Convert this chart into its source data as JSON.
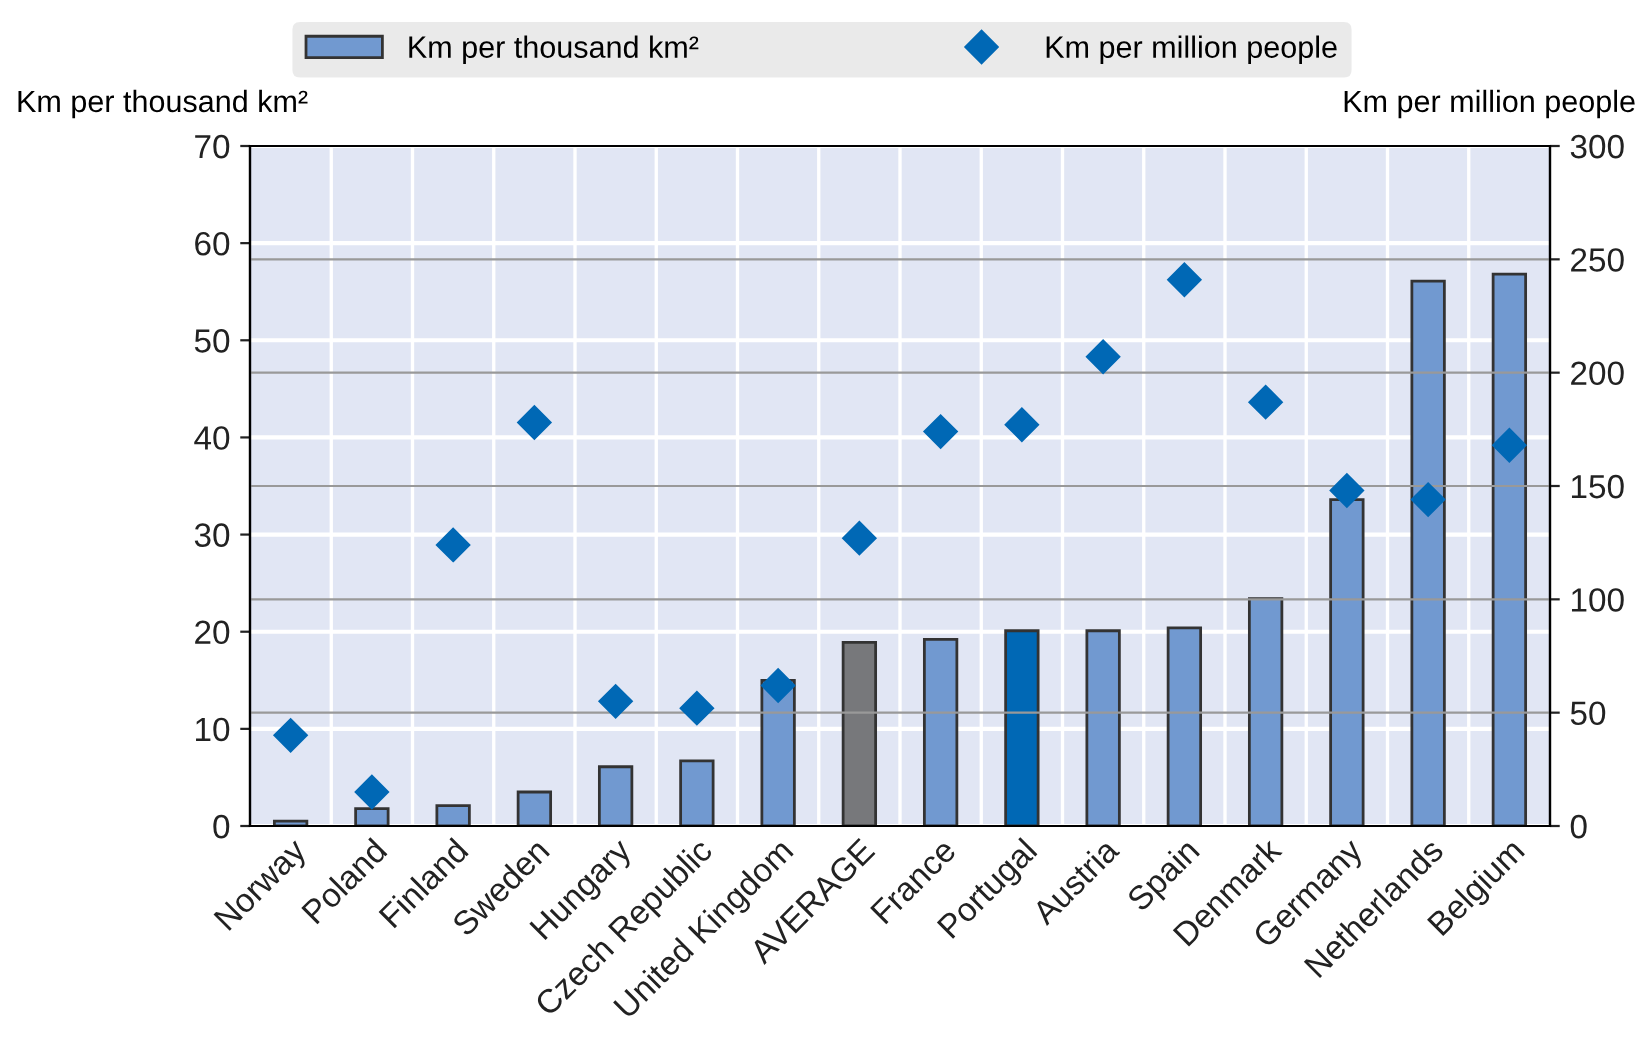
{
  "chart_data": {
    "type": "bar",
    "categories": [
      "Norway",
      "Poland",
      "Finland",
      "Sweden",
      "Hungary",
      "Czech Republic",
      "United Kingdom",
      "AVERAGE",
      "France",
      "Portugal",
      "Austria",
      "Spain",
      "Denmark",
      "Germany",
      "Netherlands",
      "Belgium"
    ],
    "ylabel": "Km per thousand km²",
    "y2label": "Km per million people",
    "series": [
      {
        "name": "Km per thousand km²",
        "color": "#7199d0",
        "colors": [
          "#7199d0",
          "#7199d0",
          "#7199d0",
          "#7199d0",
          "#7199d0",
          "#7199d0",
          "#7199d0",
          "#77787b",
          "#7199d0",
          "#0068b5",
          "#7199d0",
          "#7199d0",
          "#7199d0",
          "#7199d0",
          "#7199d0",
          "#7199d0"
        ],
        "values": [
          0.5,
          1.8,
          2.1,
          3.5,
          6.1,
          6.7,
          15,
          18.9,
          19.2,
          20.1,
          20.1,
          20.4,
          23.4,
          33.6,
          56.1,
          56.8
        ]
      },
      {
        "name": "Km per million people",
        "type": "scatter",
        "axis": "y2",
        "marker": "diamond",
        "color": "#0068b5",
        "values": [
          40,
          15,
          124,
          178,
          55,
          52,
          62,
          127,
          174,
          177,
          207,
          241,
          187,
          148,
          144,
          168
        ]
      }
    ],
    "ylim": [
      0,
      70
    ],
    "yticks": [
      0,
      10,
      20,
      30,
      40,
      50,
      60,
      70
    ],
    "y2lim": [
      0,
      300
    ],
    "y2ticks": [
      0,
      50,
      100,
      150,
      200,
      250,
      300
    ],
    "grid": true,
    "legend": "top"
  }
}
